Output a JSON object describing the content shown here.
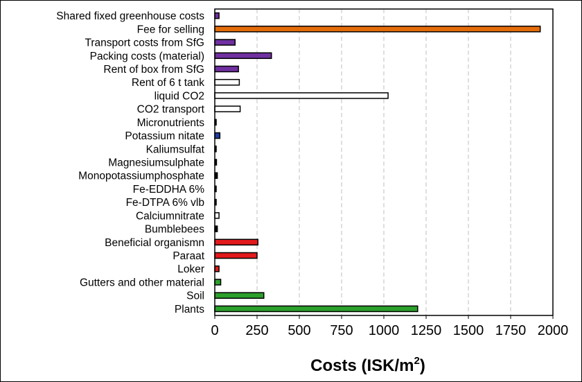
{
  "chart_data": {
    "type": "bar",
    "orientation": "horizontal",
    "title": "",
    "xlabel": "Costs (ISK/m",
    "xlabel_superscript": "2",
    "xlabel_suffix": ")",
    "ylabel": "",
    "xlim": [
      0,
      2000
    ],
    "xticks": [
      "0",
      "250",
      "500",
      "750",
      "1000",
      "1250",
      "1500",
      "1750",
      "2000"
    ],
    "xtick_values": [
      0,
      250,
      500,
      750,
      1000,
      1250,
      1500,
      1750,
      2000
    ],
    "grid": "vertical dashed",
    "legend": "none",
    "categories": [
      "Shared fixed greenhouse costs",
      "Fee for selling",
      "Transport costs from SfG",
      "Packing costs (material)",
      "Rent of box from SfG",
      "Rent of 6 t tank",
      "liquid CO2",
      "CO2 transport",
      "Micronutrients",
      "Potassium nitate",
      "Kaliumsulfat",
      "Magnesiumsulphate",
      "Monopotassiumphosphate",
      "Fe-EDDHA 6%",
      "Fe-DTPA 6% vlb",
      "Calciumnitrate",
      "Bumblebees",
      "Beneficial organismn",
      "Paraat",
      "Loker",
      "Gutters and other material",
      "Soil",
      "Plants"
    ],
    "values": [
      25,
      1925,
      120,
      335,
      140,
      145,
      1025,
      150,
      5,
      30,
      7,
      10,
      15,
      5,
      5,
      25,
      15,
      255,
      250,
      25,
      35,
      290,
      1200
    ],
    "colors": [
      "#7030A0",
      "#E46C0A",
      "#7030A0",
      "#7030A0",
      "#7030A0",
      "#FFFFFF",
      "#FFFFFF",
      "#FFFFFF",
      "#000000",
      "#1F3FA0",
      "#000000",
      "#000000",
      "#000000",
      "#000000",
      "#000000",
      "#FFFFFF",
      "#000000",
      "#E31A1C",
      "#E31A1C",
      "#E31A1C",
      "#2CA02C",
      "#2CA02C",
      "#2CA02C"
    ],
    "bar_outline": "#000000",
    "grid_color": "#BFBFBF"
  }
}
